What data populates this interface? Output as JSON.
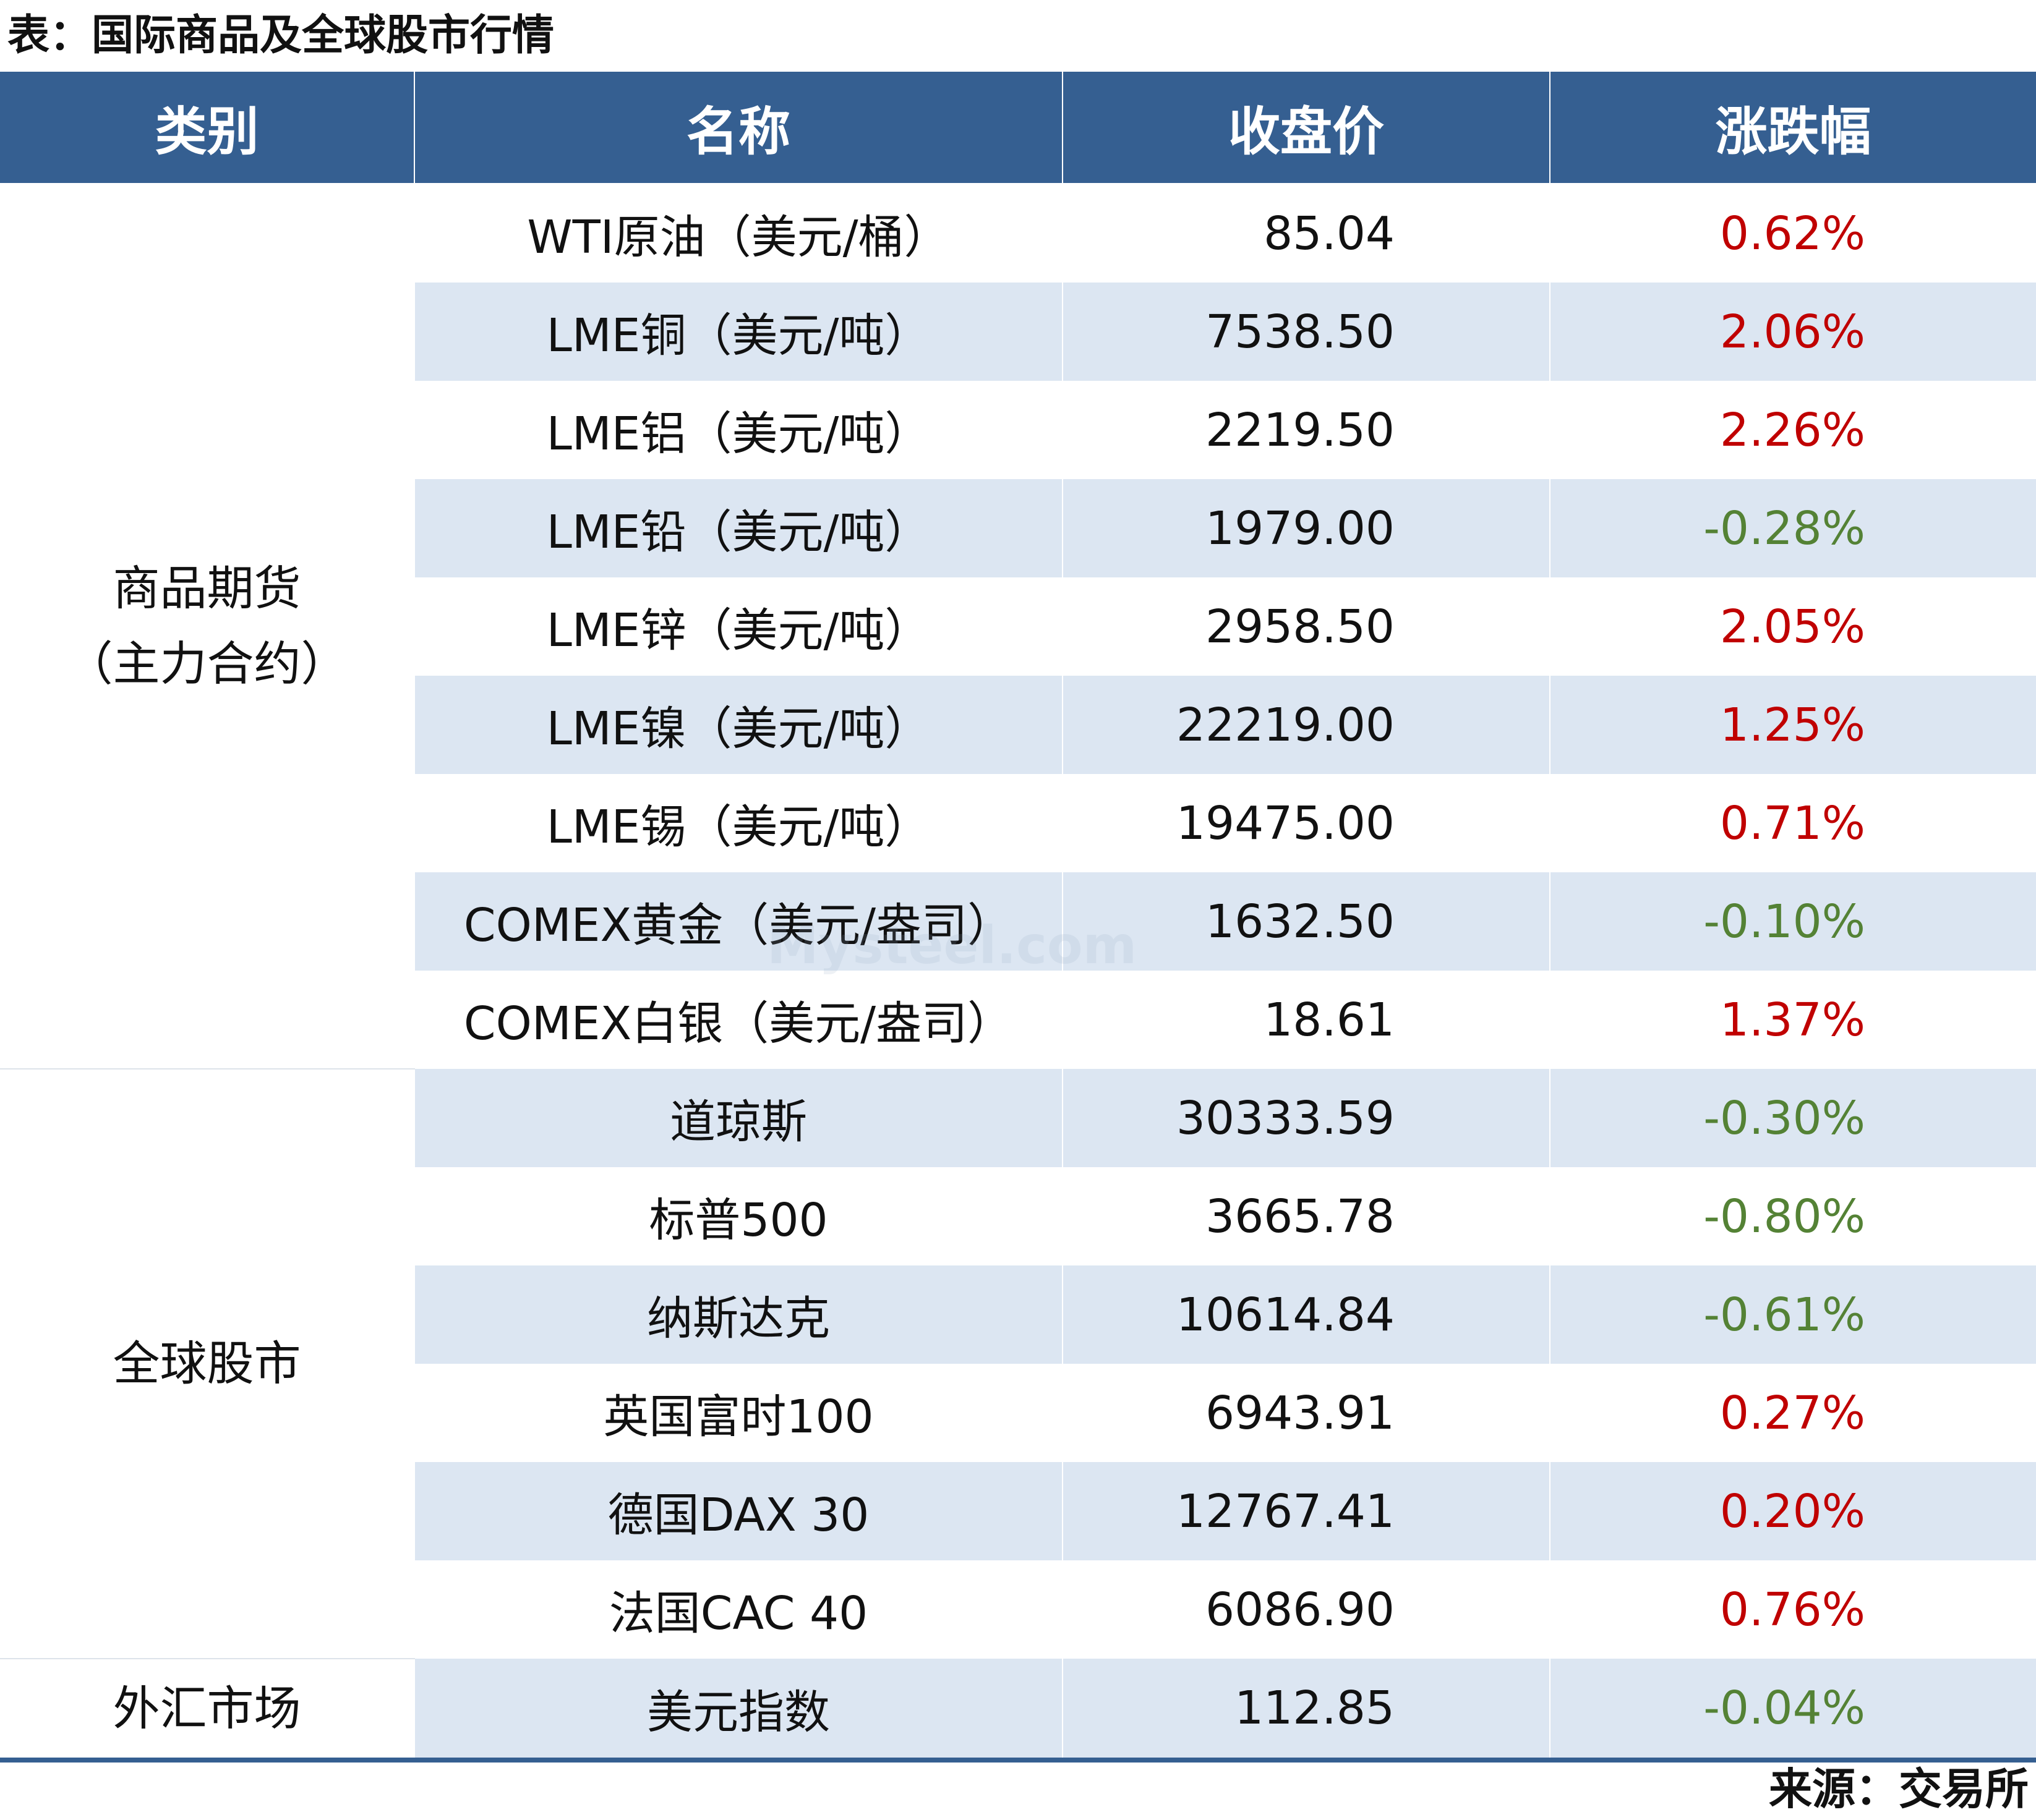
{
  "title": "表：国际商品及全球股市行情",
  "columns": [
    "类别",
    "名称",
    "收盘价",
    "涨跌幅"
  ],
  "categories": {
    "commodities_line1": "商品期货",
    "commodities_line2": "（主力合约）",
    "stocks": "全球股市",
    "fx": "外汇市场"
  },
  "rows": [
    {
      "name": "WTI原油（美元/桶）",
      "price": "85.04",
      "change": "0.62%",
      "direction": "up"
    },
    {
      "name": "LME铜（美元/吨）",
      "price": "7538.50",
      "change": "2.06%",
      "direction": "up"
    },
    {
      "name": "LME铝（美元/吨）",
      "price": "2219.50",
      "change": "2.26%",
      "direction": "up"
    },
    {
      "name": "LME铅（美元/吨）",
      "price": "1979.00",
      "change": "-0.28%",
      "direction": "down"
    },
    {
      "name": "LME锌（美元/吨）",
      "price": "2958.50",
      "change": "2.05%",
      "direction": "up"
    },
    {
      "name": "LME镍（美元/吨）",
      "price": "22219.00",
      "change": "1.25%",
      "direction": "up"
    },
    {
      "name": "LME锡（美元/吨）",
      "price": "19475.00",
      "change": "0.71%",
      "direction": "up"
    },
    {
      "name": "COMEX黄金（美元/盎司）",
      "price": "1632.50",
      "change": "-0.10%",
      "direction": "down"
    },
    {
      "name": "COMEX白银（美元/盎司）",
      "price": "18.61",
      "change": "1.37%",
      "direction": "up"
    },
    {
      "name": "道琼斯",
      "price": "30333.59",
      "change": "-0.30%",
      "direction": "down"
    },
    {
      "name": "标普500",
      "price": "3665.78",
      "change": "-0.80%",
      "direction": "down"
    },
    {
      "name": "纳斯达克",
      "price": "10614.84",
      "change": "-0.61%",
      "direction": "down"
    },
    {
      "name": "英国富时100",
      "price": "6943.91",
      "change": "0.27%",
      "direction": "up"
    },
    {
      "name": "德国DAX 30",
      "price": "12767.41",
      "change": "0.20%",
      "direction": "up"
    },
    {
      "name": "法国CAC 40",
      "price": "6086.90",
      "change": "0.76%",
      "direction": "up"
    },
    {
      "name": "美元指数",
      "price": "112.85",
      "change": "-0.04%",
      "direction": "down"
    }
  ],
  "source": "来源：交易所",
  "watermark": "Mysteel.com",
  "colors": {
    "header_bg": "#355f91",
    "stripe_bg": "#dce6f2",
    "up": "#c00000",
    "down": "#548235"
  }
}
